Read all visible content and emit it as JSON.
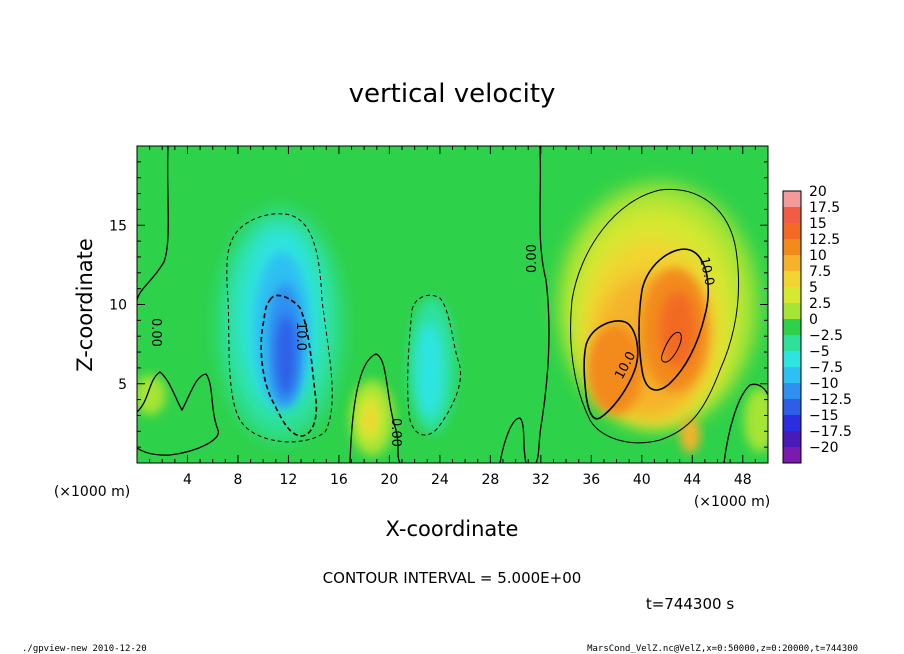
{
  "chart_data": {
    "type": "heatmap",
    "title": "vertical velocity",
    "xlabel": "X-coordinate",
    "ylabel": "Z-coordinate",
    "x_unit": "(×1000 m)",
    "y_unit": "(×1000 m)",
    "xlim": [
      0,
      50
    ],
    "ylim": [
      0,
      20
    ],
    "x_ticks": [
      4,
      8,
      12,
      16,
      20,
      24,
      28,
      32,
      36,
      40,
      44,
      48
    ],
    "y_ticks": [
      5,
      10,
      15
    ],
    "colorbar": {
      "levels": [
        20,
        17.5,
        15,
        12.5,
        10,
        7.5,
        5,
        2.5,
        0,
        -2.5,
        -5,
        -7.5,
        -10,
        -12.5,
        -15,
        -17.5,
        -20
      ],
      "level_labels": [
        "20",
        "17.5",
        "15",
        "12.5",
        "10",
        "7.5",
        "5",
        "2.5",
        "0",
        "−2.5",
        "−5",
        "−7.5",
        "−10",
        "−12.5",
        "−15",
        "−17.5",
        "−20"
      ],
      "colors": [
        "#f49a9a",
        "#f25c44",
        "#f26a24",
        "#f28a1c",
        "#f5b22a",
        "#f2d432",
        "#d6e830",
        "#a6e436",
        "#2ed14a",
        "#2ee09a",
        "#2ee4e0",
        "#2ec0f2",
        "#2e90f0",
        "#2e5ee8",
        "#2a2ee0",
        "#4a1ab8",
        "#7a1ab0"
      ]
    },
    "contour_labels": [
      "0.00",
      "0.00",
      "0.00",
      "10.0",
      "10.0",
      "10.0"
    ],
    "contour_interval_text": "CONTOUR INTERVAL = 5.000E+00",
    "time_text": "t=744300 s",
    "features": [
      {
        "kind": "downdraft",
        "x": 11.5,
        "z": 8.5,
        "value": -13
      },
      {
        "kind": "downdraft",
        "x": 22.5,
        "z": 7.0,
        "value": -5
      },
      {
        "kind": "updraft",
        "x": 38.5,
        "z": 7.0,
        "value": 12
      },
      {
        "kind": "updraft",
        "x": 43.0,
        "z": 9.0,
        "value": 13
      },
      {
        "kind": "updraft",
        "x": 18.5,
        "z": 3.0,
        "value": 8
      }
    ]
  },
  "footer": {
    "left": "./gpview-new  2010-12-20",
    "right": "MarsCond_VelZ.nc@VelZ,x=0:50000,z=0:20000,t=744300"
  }
}
